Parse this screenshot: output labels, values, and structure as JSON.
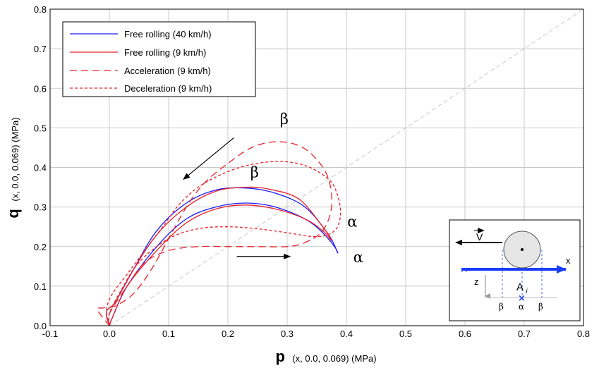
{
  "chart_data": {
    "type": "line",
    "xlabel_main": "p",
    "xlabel_sub": "(x, 0.0, 0.069) (MPa)",
    "ylabel_main": "q",
    "ylabel_sub": "(x, 0.0, 0.069) (MPa)",
    "xlim": [
      -0.1,
      0.8
    ],
    "ylim": [
      0.0,
      0.8
    ],
    "xticks": [
      "-0.1",
      "0.0",
      "0.1",
      "0.2",
      "0.3",
      "0.4",
      "0.5",
      "0.6",
      "0.7",
      "0.8"
    ],
    "yticks": [
      "0.0",
      "0.1",
      "0.2",
      "0.3",
      "0.4",
      "0.5",
      "0.6",
      "0.7",
      "0.8"
    ],
    "grid": true,
    "legend_position": "top-left",
    "series": [
      {
        "name": "Free rolling (40 km/h)",
        "color": "#1a1aff",
        "dash": "solid",
        "x": [
          0.0,
          0.005,
          0.03,
          0.08,
          0.13,
          0.18,
          0.23,
          0.28,
          0.33,
          0.36,
          0.38,
          0.385,
          0.37,
          0.33,
          0.28,
          0.23,
          0.18,
          0.13,
          0.08,
          0.04,
          0.01,
          -0.005,
          0.0
        ],
        "y": [
          0.0,
          0.02,
          0.1,
          0.2,
          0.27,
          0.3,
          0.31,
          0.3,
          0.27,
          0.235,
          0.2,
          0.185,
          0.23,
          0.3,
          0.335,
          0.348,
          0.343,
          0.31,
          0.24,
          0.14,
          0.06,
          0.035,
          0.0
        ]
      },
      {
        "name": "Free rolling (9 km/h)",
        "color": "#e8202a",
        "dash": "solid",
        "x": [
          0.0,
          0.005,
          0.03,
          0.08,
          0.13,
          0.18,
          0.23,
          0.28,
          0.33,
          0.36,
          0.375,
          0.36,
          0.32,
          0.27,
          0.23,
          0.18,
          0.13,
          0.08,
          0.04,
          0.01,
          -0.005,
          0.0
        ],
        "y": [
          0.0,
          0.02,
          0.1,
          0.19,
          0.26,
          0.295,
          0.305,
          0.295,
          0.27,
          0.24,
          0.215,
          0.25,
          0.32,
          0.345,
          0.35,
          0.34,
          0.3,
          0.23,
          0.14,
          0.06,
          0.035,
          0.0
        ]
      },
      {
        "name": "Acceleration (9 km/h)",
        "color": "#e8202a",
        "dash": "long",
        "x": [
          0.0,
          0.0,
          0.03,
          0.06,
          0.1,
          0.15,
          0.2,
          0.25,
          0.3,
          0.33,
          0.36,
          0.375,
          0.37,
          0.35,
          0.32,
          0.28,
          0.24,
          0.2,
          0.16,
          0.13,
          0.1,
          0.07,
          0.04,
          0.01,
          -0.01,
          -0.02,
          0.0
        ],
        "y": [
          0.0,
          0.03,
          0.1,
          0.16,
          0.19,
          0.2,
          0.2,
          0.2,
          0.2,
          0.21,
          0.24,
          0.3,
          0.37,
          0.42,
          0.455,
          0.465,
          0.45,
          0.41,
          0.36,
          0.3,
          0.22,
          0.14,
          0.08,
          0.05,
          0.045,
          0.04,
          0.0
        ]
      },
      {
        "name": "Deceleration (9 km/h)",
        "color": "#e8202a",
        "dash": "short",
        "x": [
          0.0,
          0.0,
          0.02,
          0.05,
          0.1,
          0.15,
          0.2,
          0.25,
          0.3,
          0.35,
          0.38,
          0.39,
          0.385,
          0.37,
          0.33,
          0.28,
          0.22,
          0.16,
          0.12,
          0.09,
          0.06,
          0.03,
          0.005,
          -0.005,
          0.0
        ],
        "y": [
          0.0,
          0.03,
          0.09,
          0.16,
          0.22,
          0.245,
          0.25,
          0.245,
          0.235,
          0.225,
          0.24,
          0.28,
          0.33,
          0.37,
          0.405,
          0.415,
          0.4,
          0.36,
          0.31,
          0.25,
          0.19,
          0.13,
          0.08,
          0.04,
          0.0
        ]
      }
    ],
    "annotations": [
      {
        "text": "β",
        "x": 0.295,
        "y": 0.51
      },
      {
        "text": "β",
        "x": 0.245,
        "y": 0.375
      },
      {
        "text": "α",
        "x": 0.41,
        "y": 0.25
      },
      {
        "text": "α",
        "x": 0.42,
        "y": 0.16
      }
    ],
    "arrows": [
      {
        "from": [
          0.21,
          0.475
        ],
        "to": [
          0.125,
          0.37
        ]
      },
      {
        "from": [
          0.215,
          0.175
        ],
        "to": [
          0.305,
          0.175
        ]
      }
    ],
    "diagonal_reference": {
      "from": [
        0.0,
        0.0
      ],
      "to": [
        0.8,
        0.8
      ]
    },
    "inset": {
      "velocity_label": "V",
      "x_label": "x",
      "z_label": "z",
      "point_label": "A",
      "point_subscript": "i",
      "alpha_label": "α",
      "beta_label": "β"
    }
  }
}
